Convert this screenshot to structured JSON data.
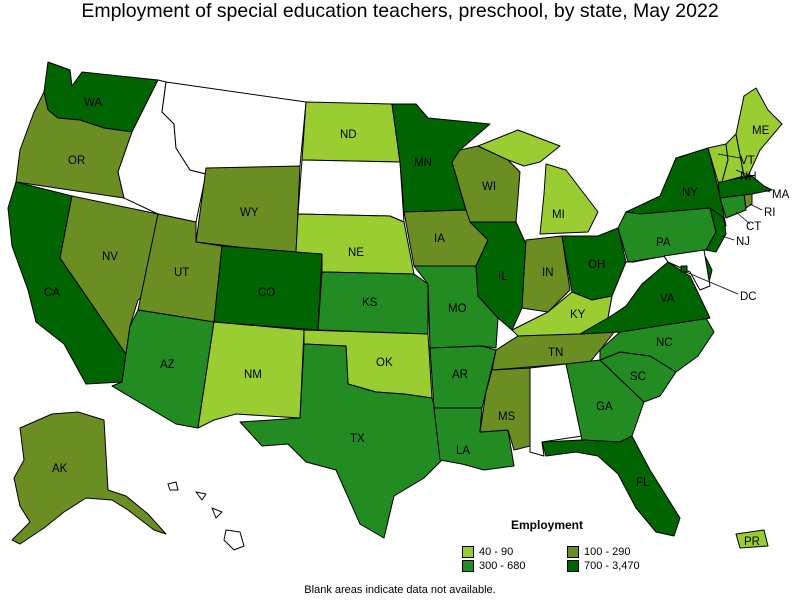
{
  "title": "Employment of special education teachers, preschool, by state, May 2022",
  "legend": {
    "title": "Employment",
    "items": [
      {
        "label": "40 - 90",
        "color": "#9acd32"
      },
      {
        "label": "100 - 290",
        "color": "#6b8e23"
      },
      {
        "label": "300 - 680",
        "color": "#228b22"
      },
      {
        "label": "700 - 3,470",
        "color": "#006400"
      }
    ]
  },
  "footnote": "Blank areas indicate data not available.",
  "states": [
    {
      "abbr": "WA",
      "tier": 3
    },
    {
      "abbr": "OR",
      "tier": 1
    },
    {
      "abbr": "CA",
      "tier": 3
    },
    {
      "abbr": "NV",
      "tier": 1
    },
    {
      "abbr": "ID",
      "tier": -1
    },
    {
      "abbr": "MT",
      "tier": -1
    },
    {
      "abbr": "WY",
      "tier": 1
    },
    {
      "abbr": "UT",
      "tier": 1
    },
    {
      "abbr": "AZ",
      "tier": 2
    },
    {
      "abbr": "CO",
      "tier": 3
    },
    {
      "abbr": "NM",
      "tier": 0
    },
    {
      "abbr": "ND",
      "tier": 0
    },
    {
      "abbr": "SD",
      "tier": -1
    },
    {
      "abbr": "NE",
      "tier": 0
    },
    {
      "abbr": "KS",
      "tier": 2
    },
    {
      "abbr": "OK",
      "tier": 0
    },
    {
      "abbr": "TX",
      "tier": 2
    },
    {
      "abbr": "MN",
      "tier": 3
    },
    {
      "abbr": "IA",
      "tier": 1
    },
    {
      "abbr": "MO",
      "tier": 2
    },
    {
      "abbr": "AR",
      "tier": 2
    },
    {
      "abbr": "LA",
      "tier": 2
    },
    {
      "abbr": "WI",
      "tier": 1
    },
    {
      "abbr": "IL",
      "tier": 3
    },
    {
      "abbr": "MI",
      "tier": 0
    },
    {
      "abbr": "IN",
      "tier": 1
    },
    {
      "abbr": "OH",
      "tier": 3
    },
    {
      "abbr": "KY",
      "tier": 0
    },
    {
      "abbr": "TN",
      "tier": 1
    },
    {
      "abbr": "MS",
      "tier": 1
    },
    {
      "abbr": "AL",
      "tier": -1
    },
    {
      "abbr": "GA",
      "tier": 2
    },
    {
      "abbr": "FL",
      "tier": 3
    },
    {
      "abbr": "SC",
      "tier": 2
    },
    {
      "abbr": "NC",
      "tier": 2
    },
    {
      "abbr": "VA",
      "tier": 3
    },
    {
      "abbr": "WV",
      "tier": -1
    },
    {
      "abbr": "PA",
      "tier": 2
    },
    {
      "abbr": "NY",
      "tier": 3
    },
    {
      "abbr": "VT",
      "tier": 0
    },
    {
      "abbr": "NH",
      "tier": 0
    },
    {
      "abbr": "ME",
      "tier": 0
    },
    {
      "abbr": "MA",
      "tier": 3
    },
    {
      "abbr": "RI",
      "tier": 1
    },
    {
      "abbr": "CT",
      "tier": 2
    },
    {
      "abbr": "NJ",
      "tier": 3
    },
    {
      "abbr": "DE",
      "tier": 3
    },
    {
      "abbr": "MD",
      "tier": -1
    },
    {
      "abbr": "DC",
      "tier": 3
    },
    {
      "abbr": "AK",
      "tier": 1
    },
    {
      "abbr": "HI",
      "tier": -1
    },
    {
      "abbr": "PR",
      "tier": 0
    }
  ]
}
